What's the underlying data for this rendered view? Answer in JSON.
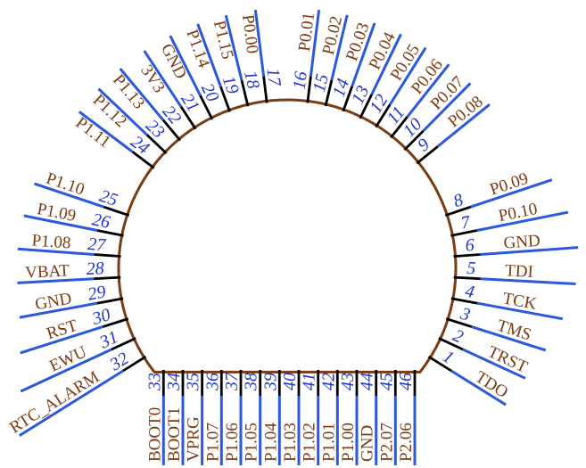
{
  "diagram": {
    "kind": "circular-chip-pinout",
    "colors": {
      "label_text": "#7B3A10",
      "number_text": "#2236CC",
      "pin_line": "#2B59DB",
      "pin_stub": "#000000",
      "body_outline": "#7A3D12",
      "background": "#FFFFFF"
    },
    "pins": [
      {
        "num": "1",
        "label": "TDO"
      },
      {
        "num": "2",
        "label": "TRST"
      },
      {
        "num": "3",
        "label": "TMS"
      },
      {
        "num": "4",
        "label": "TCK"
      },
      {
        "num": "5",
        "label": "TDI"
      },
      {
        "num": "6",
        "label": "GND"
      },
      {
        "num": "7",
        "label": "P0.10"
      },
      {
        "num": "8",
        "label": "P0.09"
      },
      {
        "num": "9",
        "label": "P0.08"
      },
      {
        "num": "10",
        "label": "P0.07"
      },
      {
        "num": "11",
        "label": "P0.06"
      },
      {
        "num": "12",
        "label": "P0.05"
      },
      {
        "num": "13",
        "label": "P0.04"
      },
      {
        "num": "14",
        "label": "P0.03"
      },
      {
        "num": "15",
        "label": "P0.02"
      },
      {
        "num": "16",
        "label": "P0.01"
      },
      {
        "num": "17",
        "label": "P0.00"
      },
      {
        "num": "18",
        "label": "P1.15"
      },
      {
        "num": "19",
        "label": "P1.14"
      },
      {
        "num": "20",
        "label": "GND"
      },
      {
        "num": "21",
        "label": "3V3"
      },
      {
        "num": "22",
        "label": "P1.13"
      },
      {
        "num": "23",
        "label": "P1.12"
      },
      {
        "num": "24",
        "label": "P1.11"
      },
      {
        "num": "25",
        "label": "P1.10"
      },
      {
        "num": "26",
        "label": "P1.09"
      },
      {
        "num": "27",
        "label": "P1.08"
      },
      {
        "num": "28",
        "label": "VBAT"
      },
      {
        "num": "29",
        "label": "GND"
      },
      {
        "num": "30",
        "label": "RST"
      },
      {
        "num": "31",
        "label": "EWU"
      },
      {
        "num": "32",
        "label": "RTC_ALARM"
      },
      {
        "num": "33",
        "label": "BOOT0"
      },
      {
        "num": "34",
        "label": "BOOT1"
      },
      {
        "num": "35",
        "label": "VPRG"
      },
      {
        "num": "36",
        "label": "P1.07"
      },
      {
        "num": "37",
        "label": "P1.06"
      },
      {
        "num": "38",
        "label": "P1.05"
      },
      {
        "num": "39",
        "label": "P1.04"
      },
      {
        "num": "40",
        "label": "P1.03"
      },
      {
        "num": "41",
        "label": "P1.02"
      },
      {
        "num": "42",
        "label": "P1.01"
      },
      {
        "num": "43",
        "label": "P1.00"
      },
      {
        "num": "44",
        "label": "GND"
      },
      {
        "num": "45",
        "label": "P2.07"
      },
      {
        "num": "46",
        "label": "P2.06"
      }
    ]
  }
}
